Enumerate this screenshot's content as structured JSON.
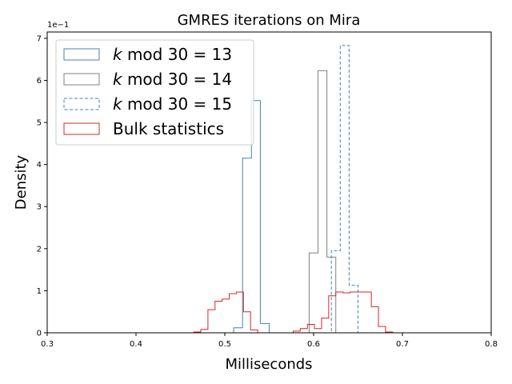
{
  "chart_data": {
    "type": "histogram",
    "title": "GMRES iterations on Mira",
    "xlabel": "Milliseconds",
    "ylabel": "Density",
    "y_multiplier": "1e−1",
    "xlim": [
      0.3,
      0.8
    ],
    "ylim": [
      0,
      7.15
    ],
    "x_ticks": [
      "0.3",
      "0.4",
      "0.5",
      "0.6",
      "0.7",
      "0.8"
    ],
    "y_ticks": [
      "0",
      "1",
      "2",
      "3",
      "4",
      "5",
      "6",
      "7"
    ],
    "legend_position": "top-left",
    "series": [
      {
        "name_prefix": "k",
        "name_suffix": " mod 30 = 13",
        "style": "solid",
        "color": "#4682b4",
        "edges": [
          0.5,
          0.51,
          0.52,
          0.53,
          0.54,
          0.55,
          0.56
        ],
        "values": [
          0.0,
          0.12,
          4.15,
          5.52,
          0.22,
          0.0
        ]
      },
      {
        "name_prefix": "k",
        "name_suffix": " mod 30 = 14",
        "style": "solid",
        "color": "#808080",
        "edges": [
          0.585,
          0.595,
          0.605,
          0.615,
          0.625
        ],
        "values": [
          0.0,
          1.9,
          6.23,
          1.8
        ]
      },
      {
        "name_prefix": "k",
        "name_suffix": " mod 30 = 15",
        "style": "dashed",
        "color": "#4682b4",
        "edges": [
          0.61,
          0.62,
          0.63,
          0.64,
          0.65,
          0.66
        ],
        "values": [
          0.0,
          1.95,
          6.83,
          1.13,
          0.0
        ]
      },
      {
        "name": "Bulk statistics",
        "style": "solid",
        "color": "#d62728",
        "edges": [
          0.465,
          0.473,
          0.481,
          0.489,
          0.497,
          0.505,
          0.513,
          0.521,
          0.529,
          0.537,
          0.545,
          0.553,
          0.561,
          0.569,
          0.577,
          0.585,
          0.593,
          0.601,
          0.609,
          0.617,
          0.625,
          0.633,
          0.641,
          0.649,
          0.657,
          0.665,
          0.673,
          0.681,
          0.689,
          0.697,
          0.705,
          0.713
        ],
        "values": [
          0.02,
          0.08,
          0.55,
          0.75,
          0.8,
          0.93,
          0.97,
          0.5,
          0.07,
          0.0,
          0.0,
          0.0,
          0.0,
          0.0,
          0.04,
          0.1,
          0.2,
          0.1,
          0.35,
          0.88,
          0.97,
          0.95,
          0.97,
          0.97,
          0.97,
          0.62,
          0.15,
          0.02,
          0.0,
          0.0,
          0.0
        ]
      }
    ]
  }
}
